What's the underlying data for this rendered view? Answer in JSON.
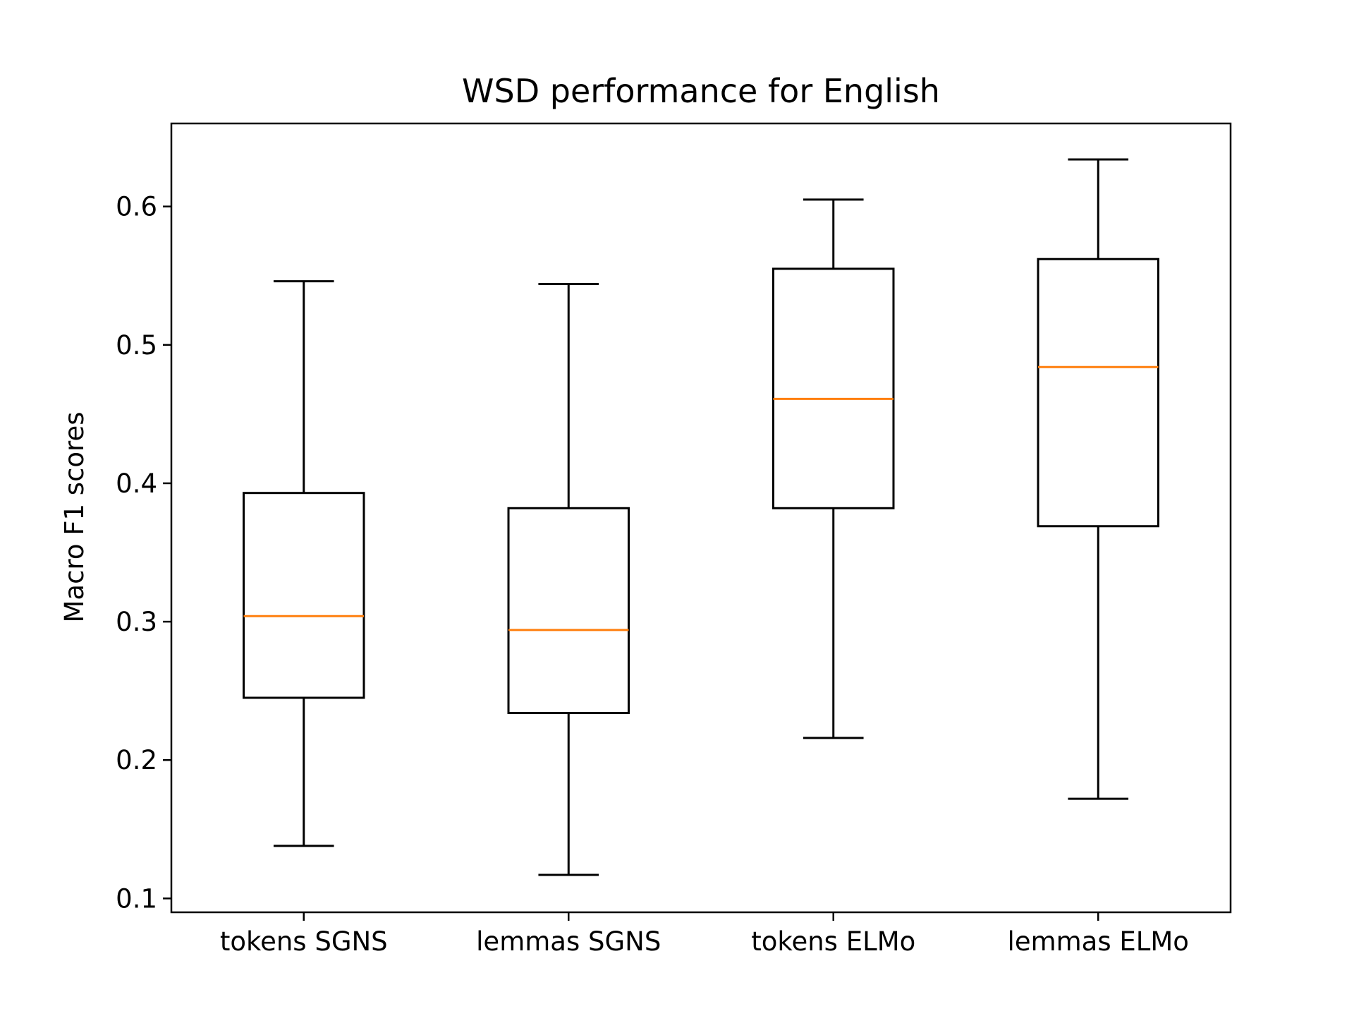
{
  "chart_data": {
    "type": "box",
    "title": "WSD performance for English",
    "xlabel": "",
    "ylabel": "Macro F1 scores",
    "ylim": [
      0.09,
      0.66
    ],
    "yticks": [
      0.1,
      0.2,
      0.3,
      0.4,
      0.5,
      0.6
    ],
    "ytick_labels": [
      "0.1",
      "0.2",
      "0.3",
      "0.4",
      "0.5",
      "0.6"
    ],
    "categories": [
      "tokens SGNS",
      "lemmas SGNS",
      "tokens ELMo",
      "lemmas ELMo"
    ],
    "boxes": [
      {
        "whisker_low": 0.138,
        "q1": 0.245,
        "median": 0.304,
        "q3": 0.393,
        "whisker_high": 0.546
      },
      {
        "whisker_low": 0.117,
        "q1": 0.234,
        "median": 0.294,
        "q3": 0.382,
        "whisker_high": 0.544
      },
      {
        "whisker_low": 0.216,
        "q1": 0.382,
        "median": 0.461,
        "q3": 0.555,
        "whisker_high": 0.605
      },
      {
        "whisker_low": 0.172,
        "q1": 0.369,
        "median": 0.484,
        "q3": 0.562,
        "whisker_high": 0.634
      }
    ],
    "grid": false,
    "legend": "none",
    "colors": {
      "box": "#000000",
      "median": "#ff7f0e",
      "background": "#ffffff"
    }
  }
}
